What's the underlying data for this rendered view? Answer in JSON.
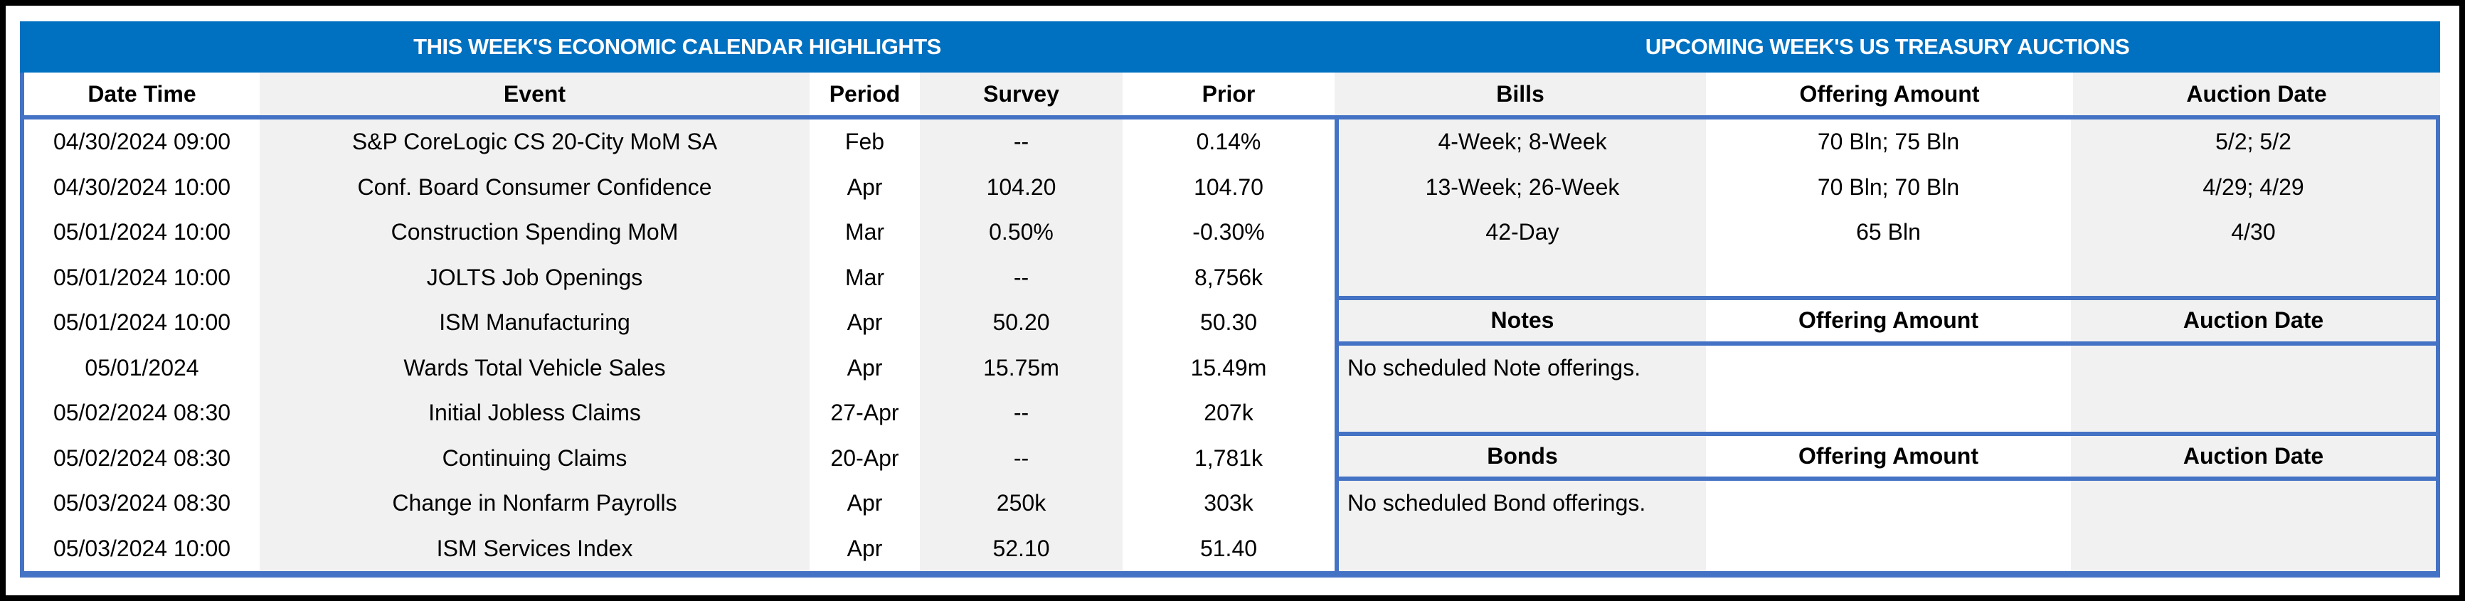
{
  "titles": {
    "left": "THIS WEEK'S ECONOMIC CALENDAR HIGHLIGHTS",
    "right": "UPCOMING WEEK'S US TREASURY AUCTIONS"
  },
  "calendar": {
    "headers": [
      "Date Time",
      "Event",
      "Period",
      "Survey",
      "Prior"
    ],
    "rows": [
      [
        "04/30/2024 09:00",
        "S&P CoreLogic CS 20-City MoM SA",
        "Feb",
        "--",
        "0.14%"
      ],
      [
        "04/30/2024 10:00",
        "Conf. Board Consumer Confidence",
        "Apr",
        "104.20",
        "104.70"
      ],
      [
        "05/01/2024 10:00",
        "Construction Spending MoM",
        "Mar",
        "0.50%",
        "-0.30%"
      ],
      [
        "05/01/2024 10:00",
        "JOLTS Job Openings",
        "Mar",
        "--",
        "8,756k"
      ],
      [
        "05/01/2024 10:00",
        "ISM Manufacturing",
        "Apr",
        "50.20",
        "50.30"
      ],
      [
        "05/01/2024",
        "Wards Total Vehicle Sales",
        "Apr",
        "15.75m",
        "15.49m"
      ],
      [
        "05/02/2024 08:30",
        "Initial Jobless Claims",
        "27-Apr",
        "--",
        "207k"
      ],
      [
        "05/02/2024 08:30",
        "Continuing Claims",
        "20-Apr",
        "--",
        "1,781k"
      ],
      [
        "05/03/2024 08:30",
        "Change in Nonfarm Payrolls",
        "Apr",
        "250k",
        "303k"
      ],
      [
        "05/03/2024 10:00",
        "ISM Services Index",
        "Apr",
        "52.10",
        "51.40"
      ]
    ]
  },
  "auctions": {
    "bills": {
      "header": [
        "Bills",
        "Offering Amount",
        "Auction Date"
      ],
      "rows": [
        [
          "4-Week; 8-Week",
          "70 Bln; 75 Bln",
          "5/2; 5/2"
        ],
        [
          "13-Week; 26-Week",
          "70 Bln; 70 Bln",
          "4/29; 4/29"
        ],
        [
          "42-Day",
          "65 Bln",
          "4/30"
        ]
      ]
    },
    "notes": {
      "header": [
        "Notes",
        "Offering Amount",
        "Auction Date"
      ],
      "message": "No scheduled Note offerings."
    },
    "bonds": {
      "header": [
        "Bonds",
        "Offering Amount",
        "Auction Date"
      ],
      "message": "No scheduled Bond offerings."
    }
  },
  "colors": {
    "title_bar_blue": "#0070C0",
    "rule_blue": "#4472C4",
    "stripe_gray": "#F1F1F1",
    "frame_black": "#000000"
  }
}
